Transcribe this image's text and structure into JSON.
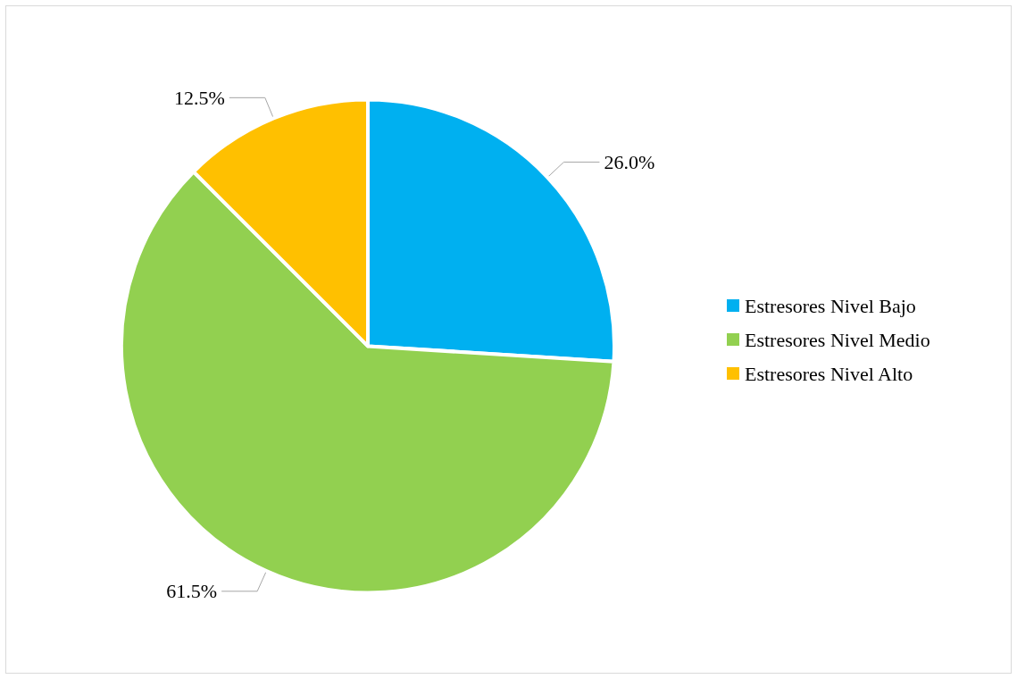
{
  "chart_data": {
    "type": "pie",
    "categories": [
      "Estresores Nivel Bajo",
      "Estresores Nivel Medio",
      "Estresores Nivel Alto"
    ],
    "values": [
      26.0,
      61.5,
      12.5
    ],
    "colors": [
      "#00b0f0",
      "#92d050",
      "#ffc000"
    ],
    "value_labels": [
      "26.0%",
      "61.5%",
      "12.5%"
    ],
    "legend": "right"
  }
}
